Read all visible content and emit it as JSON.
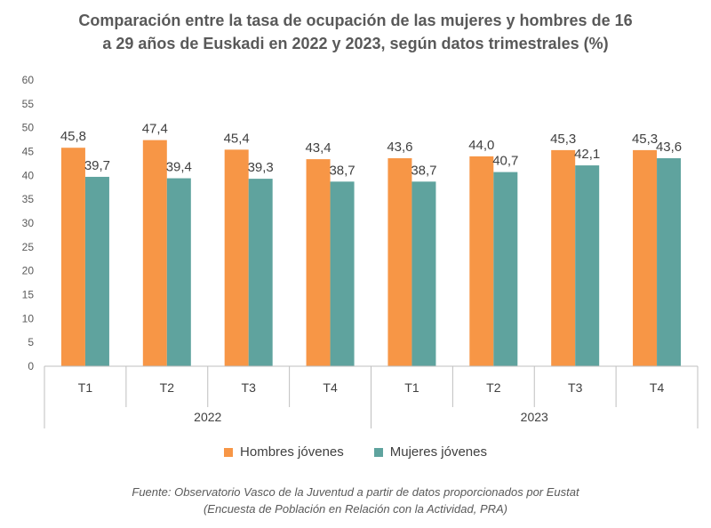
{
  "chart_data": {
    "type": "bar",
    "title_lines": [
      "Comparación  entre la tasa de ocupación  de las mujeres y hombres de 16",
      "a 29 años de Euskadi  en 2022 y 2023, según datos trimestrales (%)"
    ],
    "yticks": [
      "0",
      "5",
      "10",
      "15",
      "20",
      "25",
      "30",
      "35",
      "40",
      "45",
      "50",
      "55",
      "60"
    ],
    "ylim": [
      0,
      60
    ],
    "groups": [
      {
        "label": "2022",
        "categories": [
          "T1",
          "T2",
          "T3",
          "T4"
        ]
      },
      {
        "label": "2023",
        "categories": [
          "T1",
          "T2",
          "T3",
          "T4"
        ]
      }
    ],
    "series": [
      {
        "name": "Hombres jóvenes",
        "color": "#F79646",
        "values": [
          45.8,
          47.4,
          45.4,
          43.4,
          43.6,
          44.0,
          45.3,
          45.3
        ],
        "labels": [
          "45,8",
          "47,4",
          "45,4",
          "43,4",
          "43,6",
          "44,0",
          "45,3",
          "45,3"
        ]
      },
      {
        "name": "Mujeres jóvenes",
        "color": "#5FA39E",
        "values": [
          39.7,
          39.4,
          39.3,
          38.7,
          38.7,
          40.7,
          42.1,
          43.6
        ],
        "labels": [
          "39,7",
          "39,4",
          "39,3",
          "38,7",
          "38,7",
          "40,7",
          "42,1",
          "43,6"
        ]
      }
    ],
    "legend_position": "bottom",
    "grid": false
  },
  "source_lines": [
    "Fuente: Observatorio Vasco de la Juventud a partir de datos proporcionados por Eustat",
    "(Encuesta de Población en Relación con la Actividad, PRA)"
  ]
}
